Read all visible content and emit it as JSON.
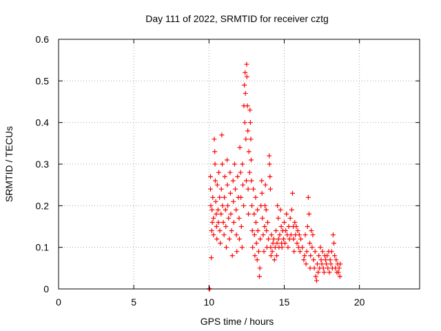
{
  "chart_data": {
    "type": "scatter",
    "title": "Day 111 of 2022, SRMTID for receiver cztg",
    "xlabel": "GPS time / hours",
    "ylabel": "SRMTID / TECUs",
    "xlim": [
      0,
      24
    ],
    "ylim": [
      0,
      0.6
    ],
    "xticks": [
      0,
      5,
      10,
      15,
      20
    ],
    "xtick_labels": [
      "0",
      "5",
      "10",
      "15",
      "20"
    ],
    "yticks": [
      0,
      0.1,
      0.2,
      0.3,
      0.4,
      0.5,
      0.6
    ],
    "ytick_labels": [
      "0",
      "0.1",
      "0.2",
      "0.3",
      "0.4",
      "0.5",
      "0.6"
    ],
    "grid": true,
    "marker": "plus",
    "series": [
      {
        "name": "cztg",
        "color": "#ff0000",
        "points": [
          [
            10.0,
            0.0
          ],
          [
            10.02,
            0.0
          ],
          [
            10.05,
            0.0
          ],
          [
            10.1,
            0.27
          ],
          [
            10.1,
            0.24
          ],
          [
            10.12,
            0.2
          ],
          [
            10.15,
            0.075
          ],
          [
            10.18,
            0.14
          ],
          [
            10.2,
            0.19
          ],
          [
            10.22,
            0.16
          ],
          [
            10.25,
            0.22
          ],
          [
            10.3,
            0.17
          ],
          [
            10.3,
            0.13
          ],
          [
            10.35,
            0.36
          ],
          [
            10.38,
            0.33
          ],
          [
            10.4,
            0.3
          ],
          [
            10.42,
            0.26
          ],
          [
            10.45,
            0.21
          ],
          [
            10.48,
            0.18
          ],
          [
            10.5,
            0.15
          ],
          [
            10.52,
            0.12
          ],
          [
            10.55,
            0.25
          ],
          [
            10.6,
            0.19
          ],
          [
            10.62,
            0.16
          ],
          [
            10.65,
            0.28
          ],
          [
            10.7,
            0.22
          ],
          [
            10.72,
            0.14
          ],
          [
            10.75,
            0.11
          ],
          [
            10.8,
            0.18
          ],
          [
            10.82,
            0.24
          ],
          [
            10.85,
            0.37
          ],
          [
            10.88,
            0.3
          ],
          [
            10.9,
            0.2
          ],
          [
            10.95,
            0.16
          ],
          [
            11.0,
            0.13
          ],
          [
            11.02,
            0.22
          ],
          [
            11.05,
            0.27
          ],
          [
            11.1,
            0.19
          ],
          [
            11.12,
            0.15
          ],
          [
            11.15,
            0.1
          ],
          [
            11.2,
            0.31
          ],
          [
            11.22,
            0.25
          ],
          [
            11.25,
            0.2
          ],
          [
            11.3,
            0.17
          ],
          [
            11.35,
            0.12
          ],
          [
            11.4,
            0.28
          ],
          [
            11.42,
            0.23
          ],
          [
            11.45,
            0.18
          ],
          [
            11.5,
            0.14
          ],
          [
            11.55,
            0.08
          ],
          [
            11.6,
            0.26
          ],
          [
            11.62,
            0.21
          ],
          [
            11.65,
            0.16
          ],
          [
            11.7,
            0.3
          ],
          [
            11.75,
            0.24
          ],
          [
            11.8,
            0.19
          ],
          [
            11.82,
            0.13
          ],
          [
            11.85,
            0.09
          ],
          [
            11.9,
            0.27
          ],
          [
            11.95,
            0.22
          ],
          [
            12.0,
            0.17
          ],
          [
            12.02,
            0.12
          ],
          [
            12.05,
            0.34
          ],
          [
            12.1,
            0.28
          ],
          [
            12.12,
            0.22
          ],
          [
            12.15,
            0.15
          ],
          [
            12.2,
            0.1
          ],
          [
            12.22,
            0.3
          ],
          [
            12.25,
            0.25
          ],
          [
            12.3,
            0.2
          ],
          [
            12.32,
            0.44
          ],
          [
            12.35,
            0.49
          ],
          [
            12.38,
            0.4
          ],
          [
            12.4,
            0.52
          ],
          [
            12.42,
            0.47
          ],
          [
            12.45,
            0.36
          ],
          [
            12.48,
            0.26
          ],
          [
            12.5,
            0.54
          ],
          [
            12.52,
            0.51
          ],
          [
            12.55,
            0.44
          ],
          [
            12.58,
            0.38
          ],
          [
            12.6,
            0.24
          ],
          [
            12.62,
            0.18
          ],
          [
            12.65,
            0.33
          ],
          [
            12.7,
            0.28
          ],
          [
            12.72,
            0.43
          ],
          [
            12.75,
            0.4
          ],
          [
            12.78,
            0.36
          ],
          [
            12.8,
            0.31
          ],
          [
            12.82,
            0.26
          ],
          [
            12.85,
            0.2
          ],
          [
            12.88,
            0.14
          ],
          [
            12.9,
            0.1
          ],
          [
            12.95,
            0.24
          ],
          [
            13.0,
            0.18
          ],
          [
            13.02,
            0.13
          ],
          [
            13.05,
            0.08
          ],
          [
            13.1,
            0.22
          ],
          [
            13.12,
            0.16
          ],
          [
            13.15,
            0.11
          ],
          [
            13.2,
            0.07
          ],
          [
            13.22,
            0.19
          ],
          [
            13.25,
            0.14
          ],
          [
            13.3,
            0.09
          ],
          [
            13.35,
            0.03
          ],
          [
            13.38,
            0.05
          ],
          [
            13.4,
            0.12
          ],
          [
            13.45,
            0.2
          ],
          [
            13.5,
            0.26
          ],
          [
            13.52,
            0.23
          ],
          [
            13.55,
            0.17
          ],
          [
            13.6,
            0.13
          ],
          [
            13.65,
            0.09
          ],
          [
            13.7,
            0.15
          ],
          [
            13.72,
            0.2
          ],
          [
            13.75,
            0.25
          ],
          [
            13.8,
            0.19
          ],
          [
            13.82,
            0.14
          ],
          [
            13.85,
            0.1
          ],
          [
            13.9,
            0.16
          ],
          [
            13.95,
            0.12
          ],
          [
            14.0,
            0.32
          ],
          [
            14.02,
            0.3
          ],
          [
            14.05,
            0.27
          ],
          [
            14.08,
            0.24
          ],
          [
            14.1,
            0.1
          ],
          [
            14.12,
            0.08
          ],
          [
            14.15,
            0.13
          ],
          [
            14.2,
            0.09
          ],
          [
            14.25,
            0.11
          ],
          [
            14.3,
            0.12
          ],
          [
            14.35,
            0.07
          ],
          [
            14.4,
            0.1
          ],
          [
            14.45,
            0.14
          ],
          [
            14.5,
            0.08
          ],
          [
            14.52,
            0.11
          ],
          [
            14.55,
            0.2
          ],
          [
            14.6,
            0.17
          ],
          [
            14.62,
            0.12
          ],
          [
            14.65,
            0.1
          ],
          [
            14.7,
            0.13
          ],
          [
            14.75,
            0.19
          ],
          [
            14.8,
            0.15
          ],
          [
            14.82,
            0.11
          ],
          [
            14.85,
            0.1
          ],
          [
            14.9,
            0.14
          ],
          [
            14.95,
            0.12
          ],
          [
            15.0,
            0.16
          ],
          [
            15.05,
            0.11
          ],
          [
            15.1,
            0.14
          ],
          [
            15.15,
            0.18
          ],
          [
            15.2,
            0.13
          ],
          [
            15.25,
            0.1
          ],
          [
            15.3,
            0.15
          ],
          [
            15.35,
            0.12
          ],
          [
            15.4,
            0.17
          ],
          [
            15.45,
            0.13
          ],
          [
            15.5,
            0.19
          ],
          [
            15.55,
            0.23
          ],
          [
            15.6,
            0.15
          ],
          [
            15.62,
            0.12
          ],
          [
            15.65,
            0.09
          ],
          [
            15.7,
            0.16
          ],
          [
            15.75,
            0.13
          ],
          [
            15.8,
            0.15
          ],
          [
            15.85,
            0.11
          ],
          [
            15.9,
            0.14
          ],
          [
            15.95,
            0.1
          ],
          [
            16.0,
            0.13
          ],
          [
            16.05,
            0.09
          ],
          [
            16.1,
            0.12
          ],
          [
            16.2,
            0.1
          ],
          [
            16.3,
            0.07
          ],
          [
            16.35,
            0.08
          ],
          [
            16.4,
            0.13
          ],
          [
            16.45,
            0.06
          ],
          [
            16.5,
            0.09
          ],
          [
            16.55,
            0.15
          ],
          [
            16.6,
            0.22
          ],
          [
            16.65,
            0.18
          ],
          [
            16.7,
            0.11
          ],
          [
            16.72,
            0.05
          ],
          [
            16.75,
            0.08
          ],
          [
            16.8,
            0.14
          ],
          [
            16.85,
            0.1
          ],
          [
            16.9,
            0.13
          ],
          [
            16.95,
            0.07
          ],
          [
            17.0,
            0.05
          ],
          [
            17.05,
            0.09
          ],
          [
            17.1,
            0.03
          ],
          [
            17.15,
            0.02
          ],
          [
            17.2,
            0.06
          ],
          [
            17.25,
            0.04
          ],
          [
            17.3,
            0.08
          ],
          [
            17.35,
            0.05
          ],
          [
            17.4,
            0.1
          ],
          [
            17.45,
            0.07
          ],
          [
            17.5,
            0.06
          ],
          [
            17.55,
            0.09
          ],
          [
            17.6,
            0.05
          ],
          [
            17.65,
            0.04
          ],
          [
            17.7,
            0.08
          ],
          [
            17.75,
            0.07
          ],
          [
            17.8,
            0.06
          ],
          [
            17.85,
            0.08
          ],
          [
            17.9,
            0.05
          ],
          [
            17.95,
            0.09
          ],
          [
            18.0,
            0.04
          ],
          [
            18.05,
            0.07
          ],
          [
            18.1,
            0.06
          ],
          [
            18.15,
            0.09
          ],
          [
            18.2,
            0.05
          ],
          [
            18.25,
            0.13
          ],
          [
            18.3,
            0.11
          ],
          [
            18.35,
            0.08
          ],
          [
            18.4,
            0.05
          ],
          [
            18.45,
            0.07
          ],
          [
            18.5,
            0.04
          ],
          [
            18.55,
            0.06
          ],
          [
            18.6,
            0.04
          ],
          [
            18.65,
            0.05
          ],
          [
            18.7,
            0.03
          ],
          [
            18.72,
            0.06
          ]
        ]
      }
    ]
  }
}
